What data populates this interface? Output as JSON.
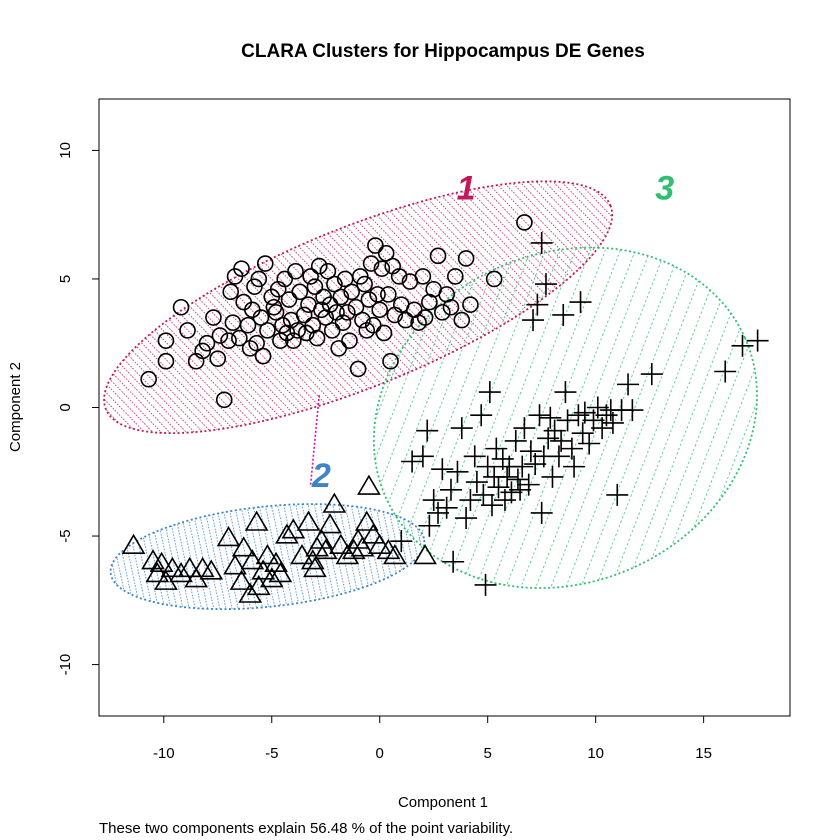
{
  "chart_data": {
    "type": "scatter",
    "title": "CLARA Clusters for Hippocampus DE Genes",
    "xlabel": "Component 1",
    "ylabel": "Component 2",
    "subtitle": "These two components explain 56.48 % of the point variability.",
    "xlim": [
      -13,
      19
    ],
    "ylim": [
      -12,
      12
    ],
    "xticks": [
      -10,
      -5,
      0,
      5,
      10,
      15
    ],
    "yticks": [
      -10,
      -5,
      0,
      5,
      10
    ],
    "grid": false,
    "colors": {
      "cluster1": "#c2185b",
      "cluster2": "#3d85c6",
      "cluster3": "#2fbf71",
      "points": "#000000"
    },
    "clusters": [
      {
        "label": "1",
        "marker": "circle",
        "color": "#c2185b",
        "ellipse": {
          "cx": -1.0,
          "cy": 3.9,
          "rx": 12.6,
          "ry": 3.1,
          "angle_deg": 22
        },
        "label_pos": [
          4.0,
          8.1
        ],
        "points": [
          [
            -10.7,
            1.1
          ],
          [
            -9.9,
            1.8
          ],
          [
            -9.9,
            2.6
          ],
          [
            -9.2,
            3.9
          ],
          [
            -8.9,
            3.0
          ],
          [
            -8.5,
            1.8
          ],
          [
            -8.2,
            2.2
          ],
          [
            -8.0,
            2.5
          ],
          [
            -7.7,
            3.5
          ],
          [
            -7.5,
            1.9
          ],
          [
            -7.4,
            2.8
          ],
          [
            -7.2,
            0.3
          ],
          [
            -7.0,
            2.6
          ],
          [
            -6.9,
            4.5
          ],
          [
            -6.8,
            3.3
          ],
          [
            -6.7,
            5.1
          ],
          [
            -6.5,
            2.7
          ],
          [
            -6.4,
            5.4
          ],
          [
            -6.3,
            4.1
          ],
          [
            -6.1,
            3.2
          ],
          [
            -6.0,
            2.3
          ],
          [
            -5.9,
            3.8
          ],
          [
            -5.8,
            4.7
          ],
          [
            -5.7,
            2.5
          ],
          [
            -5.6,
            5.0
          ],
          [
            -5.5,
            3.5
          ],
          [
            -5.4,
            2.0
          ],
          [
            -5.3,
            5.6
          ],
          [
            -5.2,
            3.0
          ],
          [
            -5.0,
            4.3
          ],
          [
            -4.9,
            3.9
          ],
          [
            -4.8,
            3.7
          ],
          [
            -4.7,
            4.6
          ],
          [
            -4.6,
            2.6
          ],
          [
            -4.5,
            3.2
          ],
          [
            -4.4,
            5.0
          ],
          [
            -4.3,
            2.9
          ],
          [
            -4.2,
            4.2
          ],
          [
            -4.1,
            3.4
          ],
          [
            -4.0,
            2.6
          ],
          [
            -3.9,
            5.3
          ],
          [
            -3.8,
            3.0
          ],
          [
            -3.7,
            4.5
          ],
          [
            -3.5,
            3.6
          ],
          [
            -3.4,
            2.9
          ],
          [
            -3.3,
            4.0
          ],
          [
            -3.2,
            5.1
          ],
          [
            -3.1,
            3.2
          ],
          [
            -3.0,
            4.7
          ],
          [
            -2.9,
            2.7
          ],
          [
            -2.8,
            5.5
          ],
          [
            -2.7,
            3.8
          ],
          [
            -2.6,
            4.3
          ],
          [
            -2.5,
            3.5
          ],
          [
            -2.4,
            5.3
          ],
          [
            -2.3,
            4.0
          ],
          [
            -2.2,
            3.0
          ],
          [
            -2.1,
            4.8
          ],
          [
            -2.0,
            3.7
          ],
          [
            -1.9,
            2.3
          ],
          [
            -1.8,
            4.3
          ],
          [
            -1.7,
            3.3
          ],
          [
            -1.6,
            5.0
          ],
          [
            -1.5,
            3.7
          ],
          [
            -1.4,
            2.6
          ],
          [
            -1.3,
            4.5
          ],
          [
            -1.1,
            3.9
          ],
          [
            -1.0,
            1.5
          ],
          [
            -0.9,
            5.1
          ],
          [
            -0.8,
            3.4
          ],
          [
            -0.7,
            4.8
          ],
          [
            -0.6,
            3.0
          ],
          [
            -0.5,
            4.2
          ],
          [
            -0.4,
            5.6
          ],
          [
            -0.3,
            3.2
          ],
          [
            -0.2,
            6.3
          ],
          [
            -0.1,
            4.4
          ],
          [
            0.0,
            3.8
          ],
          [
            0.1,
            5.4
          ],
          [
            0.2,
            2.9
          ],
          [
            0.3,
            6.0
          ],
          [
            0.4,
            4.4
          ],
          [
            0.5,
            1.8
          ],
          [
            0.6,
            5.5
          ],
          [
            0.7,
            3.6
          ],
          [
            0.9,
            5.1
          ],
          [
            1.0,
            4.0
          ],
          [
            1.2,
            3.4
          ],
          [
            1.4,
            4.9
          ],
          [
            1.6,
            3.8
          ],
          [
            1.8,
            3.3
          ],
          [
            2.0,
            5.1
          ],
          [
            2.1,
            3.5
          ],
          [
            2.3,
            4.1
          ],
          [
            2.5,
            4.6
          ],
          [
            2.7,
            5.9
          ],
          [
            2.9,
            3.7
          ],
          [
            3.1,
            4.4
          ],
          [
            3.3,
            3.9
          ],
          [
            3.5,
            5.1
          ],
          [
            3.8,
            3.4
          ],
          [
            4.0,
            5.8
          ],
          [
            4.2,
            4.0
          ],
          [
            5.3,
            5.0
          ],
          [
            6.7,
            7.2
          ]
        ]
      },
      {
        "label": "2",
        "marker": "triangle",
        "color": "#3d85c6",
        "ellipse": {
          "cx": -5.2,
          "cy": -5.8,
          "rx": 7.3,
          "ry": 1.95,
          "angle_deg": 6
        },
        "label_pos": [
          -2.7,
          -3.1
        ],
        "points": [
          [
            -11.4,
            -5.4
          ],
          [
            -10.5,
            -6.0
          ],
          [
            -10.3,
            -6.5
          ],
          [
            -10.1,
            -6.1
          ],
          [
            -9.9,
            -6.8
          ],
          [
            -9.6,
            -6.3
          ],
          [
            -9.2,
            -6.5
          ],
          [
            -8.8,
            -6.3
          ],
          [
            -8.5,
            -6.7
          ],
          [
            -8.2,
            -6.3
          ],
          [
            -7.8,
            -6.4
          ],
          [
            -7.0,
            -5.1
          ],
          [
            -6.7,
            -6.2
          ],
          [
            -6.4,
            -6.8
          ],
          [
            -6.3,
            -5.5
          ],
          [
            -6.0,
            -7.3
          ],
          [
            -5.9,
            -6.0
          ],
          [
            -5.7,
            -4.5
          ],
          [
            -5.6,
            -7.0
          ],
          [
            -5.4,
            -6.4
          ],
          [
            -5.2,
            -5.8
          ],
          [
            -5.0,
            -6.7
          ],
          [
            -4.8,
            -6.1
          ],
          [
            -4.6,
            -6.5
          ],
          [
            -4.3,
            -5.0
          ],
          [
            -4.0,
            -4.8
          ],
          [
            -3.6,
            -5.8
          ],
          [
            -3.3,
            -4.5
          ],
          [
            -3.1,
            -6.0
          ],
          [
            -3.0,
            -6.3
          ],
          [
            -2.9,
            -5.5
          ],
          [
            -2.7,
            -5.2
          ],
          [
            -2.5,
            -5.6
          ],
          [
            -2.3,
            -4.6
          ],
          [
            -2.1,
            -3.8
          ],
          [
            -1.8,
            -5.4
          ],
          [
            -1.5,
            -5.8
          ],
          [
            -1.2,
            -5.6
          ],
          [
            -1.0,
            -5.2
          ],
          [
            -0.8,
            -5.5
          ],
          [
            -0.6,
            -4.5
          ],
          [
            -0.5,
            -3.1
          ],
          [
            -0.3,
            -5.0
          ],
          [
            0.0,
            -5.4
          ],
          [
            0.4,
            -5.6
          ],
          [
            0.7,
            -5.8
          ],
          [
            2.1,
            -5.8
          ]
        ]
      },
      {
        "label": "3",
        "marker": "cross",
        "color": "#2fbf71",
        "ellipse": {
          "cx": 8.6,
          "cy": -0.4,
          "rx": 9.1,
          "ry": 6.4,
          "angle_deg": 24
        },
        "label_pos": [
          13.2,
          8.1
        ],
        "points": [
          [
            1.0,
            -5.2
          ],
          [
            1.5,
            -2.1
          ],
          [
            2.0,
            -1.9
          ],
          [
            2.2,
            -0.9
          ],
          [
            2.3,
            -4.6
          ],
          [
            2.5,
            -3.6
          ],
          [
            2.7,
            -4.1
          ],
          [
            2.9,
            -2.4
          ],
          [
            3.1,
            -3.9
          ],
          [
            3.3,
            -3.2
          ],
          [
            3.4,
            -6.0
          ],
          [
            3.6,
            -2.5
          ],
          [
            3.8,
            -0.8
          ],
          [
            4.0,
            -4.3
          ],
          [
            4.2,
            -3.6
          ],
          [
            4.4,
            -1.9
          ],
          [
            4.5,
            -2.9
          ],
          [
            4.7,
            -0.3
          ],
          [
            4.8,
            -3.4
          ],
          [
            4.9,
            -6.9
          ],
          [
            5.0,
            -2.3
          ],
          [
            5.1,
            0.6
          ],
          [
            5.2,
            -3.8
          ],
          [
            5.3,
            -2.7
          ],
          [
            5.4,
            -1.6
          ],
          [
            5.5,
            -3.1
          ],
          [
            5.7,
            -2.0
          ],
          [
            5.8,
            -3.6
          ],
          [
            5.9,
            -2.7
          ],
          [
            6.0,
            -2.3
          ],
          [
            6.1,
            -3.3
          ],
          [
            6.3,
            -1.3
          ],
          [
            6.4,
            -2.8
          ],
          [
            6.5,
            -3.2
          ],
          [
            6.6,
            -2.3
          ],
          [
            6.7,
            -0.8
          ],
          [
            6.9,
            -3.0
          ],
          [
            7.0,
            -1.7
          ],
          [
            7.1,
            3.4
          ],
          [
            7.2,
            -2.2
          ],
          [
            7.3,
            4.0
          ],
          [
            7.4,
            -0.3
          ],
          [
            7.5,
            -4.1
          ],
          [
            7.6,
            -1.9
          ],
          [
            7.7,
            4.8
          ],
          [
            7.8,
            -1.2
          ],
          [
            7.9,
            -0.4
          ],
          [
            8.0,
            -2.7
          ],
          [
            8.1,
            -0.9
          ],
          [
            8.3,
            -1.9
          ],
          [
            8.4,
            -1.3
          ],
          [
            8.5,
            3.6
          ],
          [
            8.6,
            0.6
          ],
          [
            8.7,
            -0.5
          ],
          [
            8.9,
            -1.6
          ],
          [
            9.0,
            -2.3
          ],
          [
            9.2,
            -0.3
          ],
          [
            9.3,
            4.1
          ],
          [
            9.4,
            -1.0
          ],
          [
            9.5,
            -0.2
          ],
          [
            9.7,
            -1.4
          ],
          [
            9.9,
            -0.5
          ],
          [
            10.1,
            0.0
          ],
          [
            10.3,
            -0.8
          ],
          [
            10.5,
            -0.3
          ],
          [
            10.7,
            -0.1
          ],
          [
            10.8,
            -0.6
          ],
          [
            11.0,
            -3.4
          ],
          [
            11.2,
            -0.1
          ],
          [
            11.5,
            0.9
          ],
          [
            11.7,
            -0.1
          ],
          [
            12.6,
            1.3
          ],
          [
            16.0,
            1.4
          ],
          [
            16.8,
            2.4
          ],
          [
            17.5,
            2.6
          ],
          [
            7.5,
            6.4
          ]
        ]
      }
    ],
    "connector": {
      "from": [
        -3.2,
        -3.0
      ],
      "to": [
        -2.8,
        0.5
      ],
      "color": "#e20fa8"
    }
  }
}
